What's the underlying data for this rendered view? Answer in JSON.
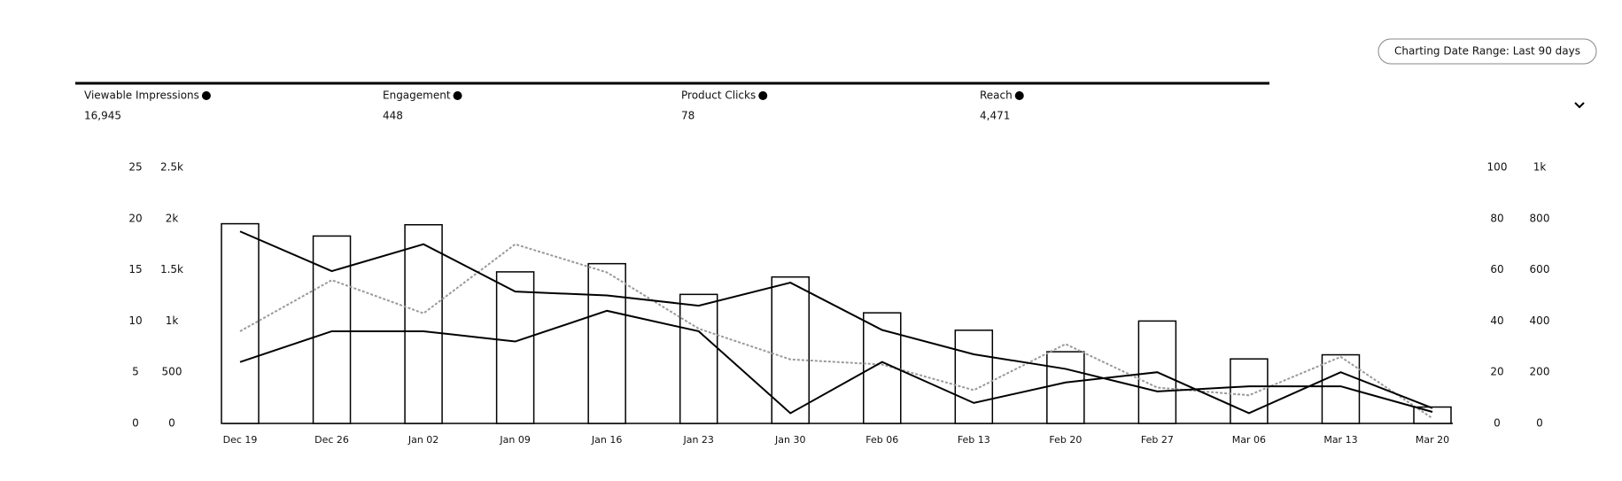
{
  "date_range_button": "Charting Date Range: Last 90 days",
  "chart_data": {
    "type": "bar",
    "categories": [
      "Dec 19",
      "Dec 26",
      "Jan 02",
      "Jan 09",
      "Jan 16",
      "Jan 23",
      "Jan 30",
      "Feb 06",
      "Feb 13",
      "Feb 20",
      "Feb 27",
      "Mar 06",
      "Mar 13",
      "Mar 20"
    ],
    "ylim": [
      0,
      2500
    ],
    "yticks": [
      0,
      500,
      {
        "value": 1000,
        "label": "1k"
      },
      {
        "value": 1500,
        "label": "1.5k"
      },
      {
        "value": 2000,
        "label": "2k"
      },
      {
        "value": 2500,
        "label": "2.5k"
      }
    ],
    "y2lim": [
      0,
      1000
    ],
    "y2ticks": [
      0,
      200,
      400,
      600,
      800,
      {
        "value": 1000,
        "label": "1k"
      }
    ],
    "y3lim": [
      0,
      25
    ],
    "y3ticks": [
      0,
      5,
      10,
      15,
      20,
      25
    ],
    "y4lim": [
      0,
      100
    ],
    "y4ticks": [
      0,
      20,
      40,
      60,
      80,
      100
    ],
    "series": [
      {
        "name": "Viewable Impressions",
        "total": "16,945",
        "type": "bar",
        "axis": "y",
        "color": "#000000",
        "values": [
          1950,
          1830,
          1940,
          1480,
          1560,
          1260,
          1430,
          1080,
          910,
          700,
          1000,
          630,
          670,
          160
        ]
      },
      {
        "name": "Engagement",
        "total": "448",
        "type": "line",
        "axis": "y4",
        "color": "#9a9a9a",
        "values": [
          36,
          56,
          43,
          70,
          59,
          37,
          25,
          23,
          13,
          31,
          14,
          11,
          26,
          2
        ]
      },
      {
        "name": "Product Clicks",
        "total": "78",
        "type": "line",
        "axis": "y3",
        "color": "#000000",
        "values": [
          6,
          9,
          9,
          8,
          11,
          9,
          1,
          6,
          2,
          4,
          5,
          1,
          5,
          1.5
        ]
      },
      {
        "name": "Reach",
        "total": "4,471",
        "type": "line",
        "axis": "y2",
        "color": "#000000",
        "values": [
          750,
          595,
          700,
          515,
          500,
          460,
          550,
          365,
          270,
          213,
          125,
          145,
          145,
          45
        ]
      }
    ]
  }
}
